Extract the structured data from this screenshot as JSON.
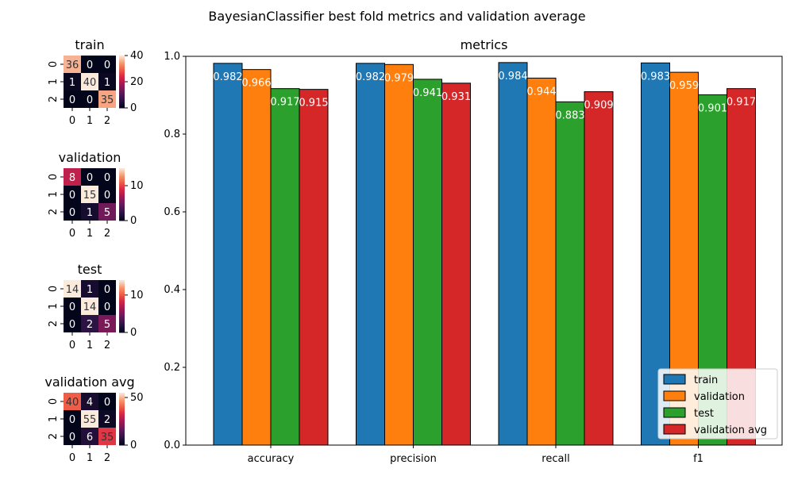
{
  "figure": {
    "suptitle": "BayesianClassifier best fold metrics and validation average"
  },
  "chart_data": [
    {
      "type": "bar",
      "title": "metrics",
      "xlabel": "",
      "ylabel": "",
      "categories": [
        "accuracy",
        "precision",
        "recall",
        "f1"
      ],
      "ylim": [
        0,
        1.0
      ],
      "yticks": [
        "0.0",
        "0.2",
        "0.4",
        "0.6",
        "0.8",
        "1.0"
      ],
      "grid": false,
      "legend_position": "lower-right",
      "series": [
        {
          "name": "train",
          "color": "#1f77b4",
          "values": [
            0.982,
            0.982,
            0.984,
            0.983
          ]
        },
        {
          "name": "validation",
          "color": "#ff7f0e",
          "values": [
            0.966,
            0.979,
            0.944,
            0.959
          ]
        },
        {
          "name": "test",
          "color": "#2ca02c",
          "values": [
            0.917,
            0.941,
            0.883,
            0.901
          ]
        },
        {
          "name": "validation avg",
          "color": "#d62728",
          "values": [
            0.915,
            0.931,
            0.909,
            0.917
          ]
        }
      ]
    },
    {
      "type": "heatmap",
      "title": "train",
      "x_ticks": [
        "0",
        "1",
        "2"
      ],
      "y_ticks": [
        "0",
        "1",
        "2"
      ],
      "matrix": [
        [
          36,
          0,
          0
        ],
        [
          1,
          40,
          1
        ],
        [
          0,
          0,
          35
        ]
      ],
      "colorbar_ticks": [
        0,
        20,
        40
      ],
      "colorbar_range": [
        0,
        40
      ]
    },
    {
      "type": "heatmap",
      "title": "validation",
      "x_ticks": [
        "0",
        "1",
        "2"
      ],
      "y_ticks": [
        "0",
        "1",
        "2"
      ],
      "matrix": [
        [
          8,
          0,
          0
        ],
        [
          0,
          15,
          0
        ],
        [
          0,
          1,
          5
        ]
      ],
      "colorbar_ticks": [
        0,
        10
      ],
      "colorbar_range": [
        0,
        15
      ]
    },
    {
      "type": "heatmap",
      "title": "test",
      "x_ticks": [
        "0",
        "1",
        "2"
      ],
      "y_ticks": [
        "0",
        "1",
        "2"
      ],
      "matrix": [
        [
          14,
          1,
          0
        ],
        [
          0,
          14,
          0
        ],
        [
          0,
          2,
          5
        ]
      ],
      "colorbar_ticks": [
        0,
        10
      ],
      "colorbar_range": [
        0,
        14
      ]
    },
    {
      "type": "heatmap",
      "title": "validation avg",
      "x_ticks": [
        "0",
        "1",
        "2"
      ],
      "y_ticks": [
        "0",
        "1",
        "2"
      ],
      "matrix": [
        [
          40,
          4,
          0
        ],
        [
          0,
          55,
          2
        ],
        [
          0,
          6,
          35
        ]
      ],
      "colorbar_ticks": [
        0,
        50
      ],
      "colorbar_range": [
        0,
        55
      ]
    }
  ]
}
